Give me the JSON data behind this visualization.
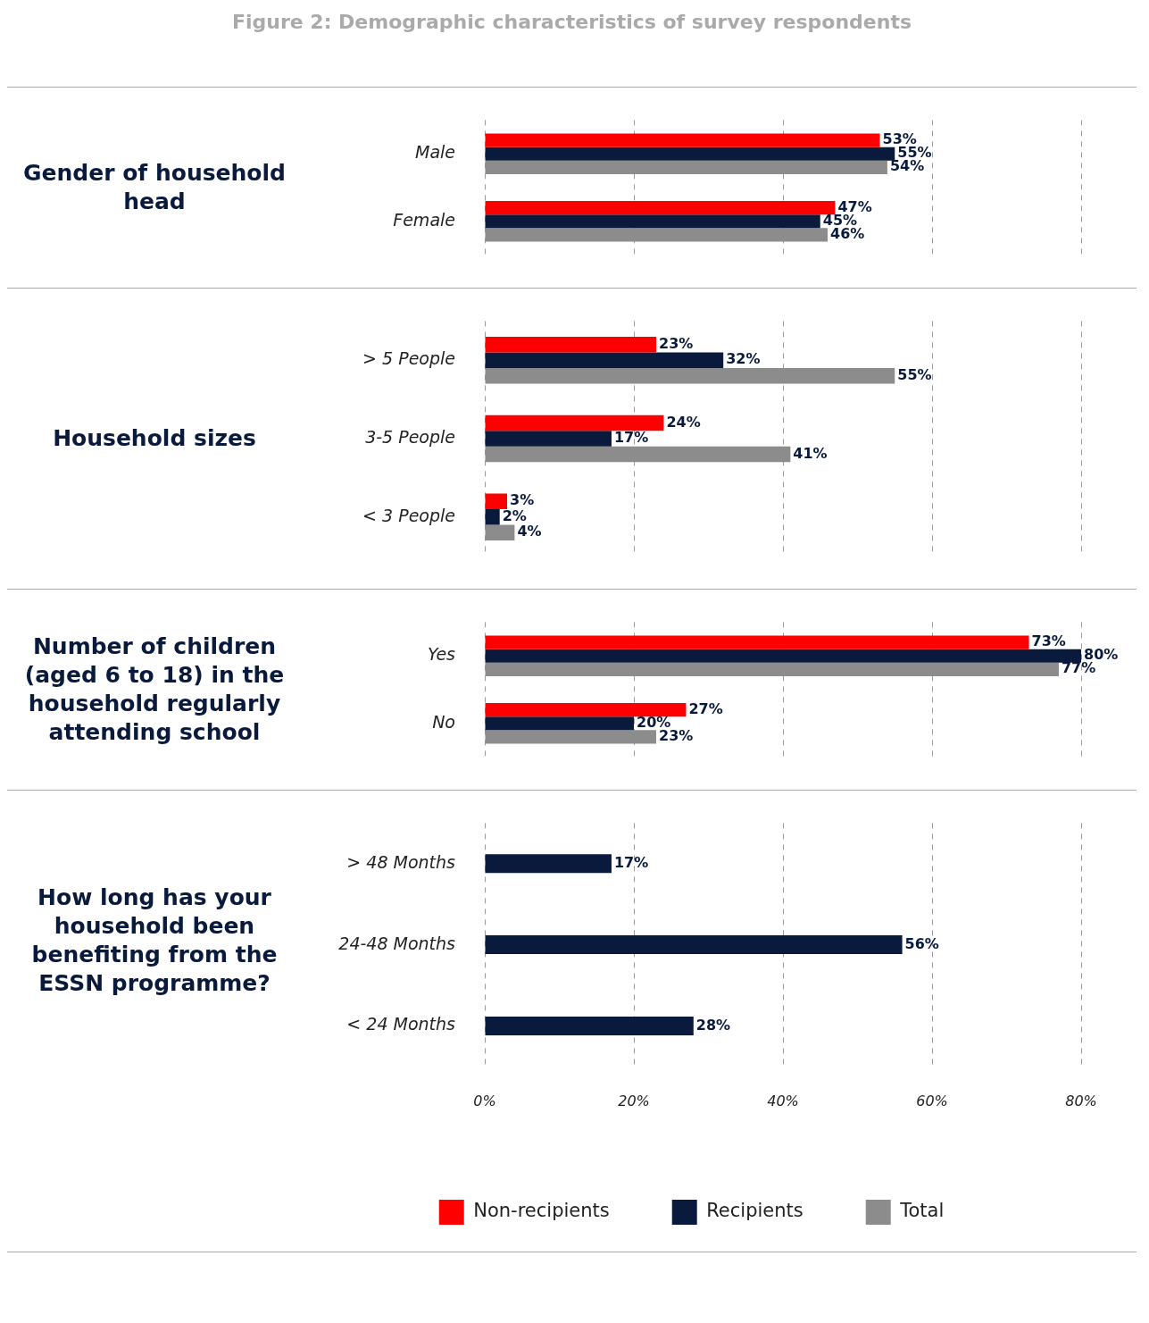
{
  "chart_data": [
    {
      "type": "bar",
      "orientation": "horizontal",
      "title": "Figure 2: Demographic characteristics of survey respondents",
      "ylabel": "Gender of household head",
      "categories": [
        "Male",
        "Female"
      ],
      "series": [
        {
          "color": "#ff0000",
          "values": [
            53,
            47
          ],
          "value_labels": [
            "53%",
            "47%"
          ]
        },
        {
          "color": "#0a1a3c",
          "values": [
            55,
            45
          ],
          "value_labels": [
            "55%",
            "45%"
          ]
        },
        {
          "color": "#8c8c8c",
          "values": [
            54,
            46
          ],
          "value_labels": [
            "54%",
            "46%"
          ]
        }
      ],
      "xlim": [
        0,
        80
      ],
      "xticks": [
        {
          "value": 0,
          "label": null
        },
        {
          "value": 20,
          "label": null
        },
        {
          "value": 40,
          "label": null
        },
        {
          "value": 60,
          "label": null
        },
        {
          "value": 80,
          "label": null
        }
      ],
      "grid": "x",
      "tick_labels": "y"
    },
    {
      "type": "bar",
      "orientation": "horizontal",
      "ylabel": "Household sizes",
      "categories": [
        "> 5 People",
        "3-5 People",
        "< 3 People"
      ],
      "series": [
        {
          "color": "#ff0000",
          "values": [
            23,
            24,
            3
          ],
          "value_labels": [
            "23%",
            "24%",
            "3%"
          ]
        },
        {
          "color": "#0a1a3c",
          "values": [
            32,
            17,
            2
          ],
          "value_labels": [
            "32%",
            "17%",
            "2%"
          ]
        },
        {
          "color": "#8c8c8c",
          "values": [
            55,
            41,
            4
          ],
          "value_labels": [
            "55%",
            "41%",
            "4%"
          ]
        }
      ],
      "xlim": [
        0,
        80
      ],
      "xticks": [
        {
          "value": 0,
          "label": null
        },
        {
          "value": 20,
          "label": null
        },
        {
          "value": 40,
          "label": null
        },
        {
          "value": 60,
          "label": null
        },
        {
          "value": 80,
          "label": null
        }
      ],
      "grid": "x",
      "tick_labels": "y"
    },
    {
      "type": "bar",
      "orientation": "horizontal",
      "ylabel": "Number of children (aged 6 to 18) in the household regularly attending school",
      "categories": [
        "Yes",
        "No"
      ],
      "series": [
        {
          "color": "#ff0000",
          "values": [
            73,
            27
          ],
          "value_labels": [
            "73%",
            "27%"
          ]
        },
        {
          "color": "#0a1a3c",
          "values": [
            80,
            20
          ],
          "value_labels": [
            "80%",
            "20%"
          ]
        },
        {
          "color": "#8c8c8c",
          "values": [
            77,
            23
          ],
          "value_labels": [
            "77%",
            "23%"
          ]
        }
      ],
      "xlim": [
        0,
        80
      ],
      "xticks": [
        {
          "value": 0,
          "label": null
        },
        {
          "value": 20,
          "label": null
        },
        {
          "value": 40,
          "label": null
        },
        {
          "value": 60,
          "label": null
        },
        {
          "value": 80,
          "label": null
        }
      ],
      "grid": "x",
      "tick_labels": "y"
    },
    {
      "type": "bar",
      "orientation": "horizontal",
      "ylabel": "How long has your household been benefiting from the ESSN programme?",
      "categories": [
        "> 48 Months",
        "24-48 Months",
        "< 24 Months"
      ],
      "series": [
        {
          "name": "Non-recipients",
          "color": "#ff0000",
          "values": [
            null,
            null,
            null
          ]
        },
        {
          "name": "Recipients",
          "color": "#0a1a3c",
          "values": [
            17,
            56,
            28
          ],
          "value_labels": [
            "17%",
            "56%",
            "28%"
          ]
        },
        {
          "name": "Total",
          "color": "#8c8c8c",
          "values": [
            null,
            null,
            null
          ]
        }
      ],
      "xlim": [
        0,
        80
      ],
      "xticks": [
        {
          "value": 0,
          "label": "0%"
        },
        {
          "value": 20,
          "label": "20%"
        },
        {
          "value": 40,
          "label": "40%"
        },
        {
          "value": 60,
          "label": "60%"
        },
        {
          "value": 80,
          "label": "80%"
        }
      ],
      "grid": "x",
      "legend": "bottom"
    }
  ]
}
